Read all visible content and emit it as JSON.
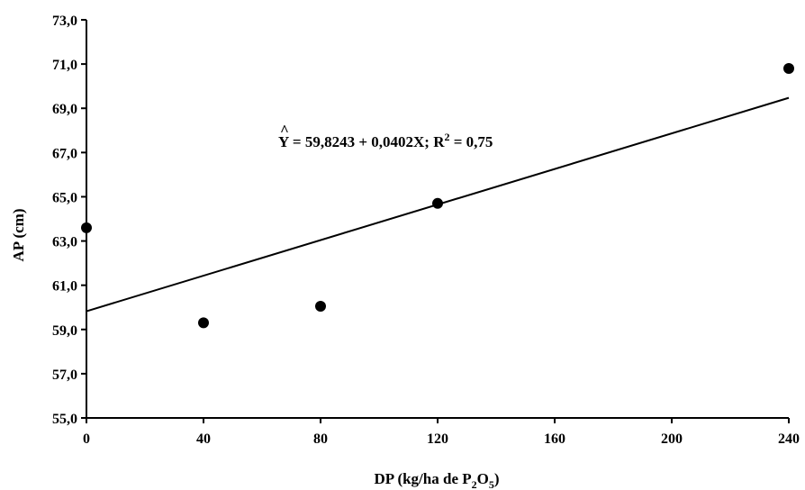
{
  "chart_data": {
    "type": "scatter",
    "title": "",
    "xlabel": "DP (kg/ha de P2O5)",
    "xlabel_parts": {
      "pre": "DP (kg/ha de P",
      "sub1": "2",
      "mid": "O",
      "sub2": "5",
      "post": ")"
    },
    "ylabel": "AP (cm)",
    "xlim": [
      0,
      240
    ],
    "ylim": [
      55,
      73
    ],
    "x_ticks": [
      0,
      40,
      80,
      120,
      160,
      200,
      240
    ],
    "x_tick_labels": [
      "0",
      "40",
      "80",
      "120",
      "160",
      "200",
      "240"
    ],
    "y_ticks": [
      55,
      57,
      59,
      61,
      63,
      65,
      67,
      69,
      71,
      73
    ],
    "y_tick_labels": [
      "55,0",
      "57,0",
      "59,0",
      "61,0",
      "63,0",
      "65,0",
      "67,0",
      "69,0",
      "71,0",
      "73,0"
    ],
    "grid": false,
    "series": [
      {
        "x": [
          0,
          40,
          80,
          120,
          240
        ],
        "y": [
          63.6,
          59.3,
          60.05,
          64.7,
          70.8
        ],
        "color": "#000000"
      }
    ],
    "trendline": {
      "intercept": 59.8243,
      "slope": 0.0402,
      "color": "#000000",
      "label_parts": {
        "y": "Y",
        "hat": "^",
        "eq": " = 59,8243 + 0,0402X; R",
        "sup": "2",
        "tail": " = 0,75"
      }
    }
  }
}
